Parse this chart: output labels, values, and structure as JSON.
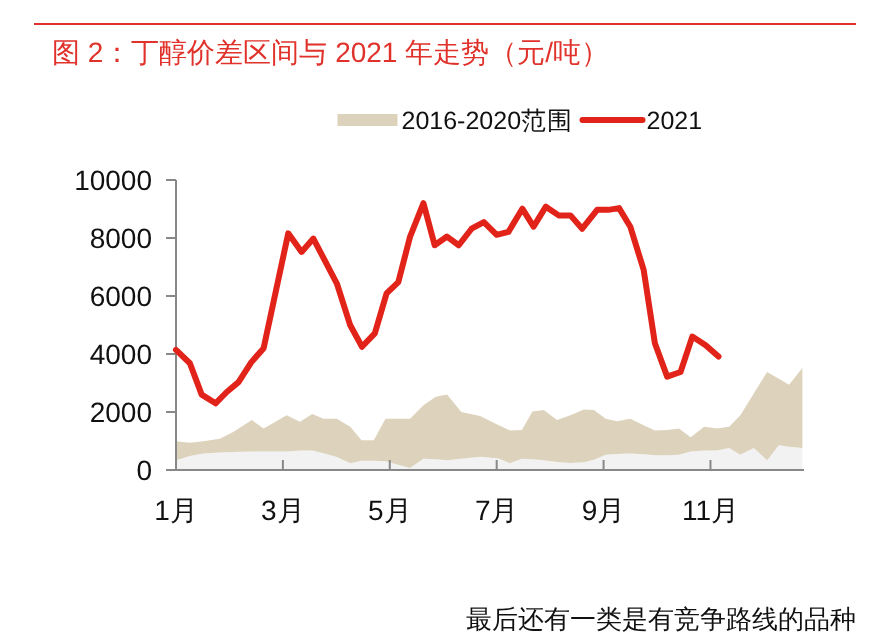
{
  "chart_data": {
    "type": "line",
    "title": "图 2：丁醇价差区间与 2021 年走势（元/吨）",
    "annotations": [
      "最后还有一类是有竞争路线的品种"
    ],
    "stacked": true,
    "legend": "top",
    "grid": false,
    "xlim": [
      1,
      12.75
    ],
    "xticks": [
      {
        "value": 1,
        "label": "1月"
      },
      {
        "value": 3,
        "label": "3月"
      },
      {
        "value": 5,
        "label": "5月"
      },
      {
        "value": 7,
        "label": "7月"
      },
      {
        "value": 9,
        "label": "9月"
      },
      {
        "value": 11,
        "label": "11月"
      }
    ],
    "ylim": [
      0,
      10000
    ],
    "yticks": [
      0,
      2000,
      4000,
      6000,
      8000,
      10000
    ],
    "series": [
      {
        "type": "area",
        "color": "#f2f2f2",
        "x": [
          1.0,
          1.26,
          1.51,
          1.82,
          2.07,
          2.42,
          2.64,
          3.07,
          3.32,
          3.55,
          3.76,
          4.01,
          4.26,
          4.47,
          4.7,
          4.92,
          5.38,
          5.63,
          5.86,
          6.07,
          6.34,
          6.69,
          7.04,
          7.25,
          7.47,
          7.67,
          7.88,
          8.13,
          8.38,
          8.63,
          8.82,
          9.04,
          9.25,
          9.5,
          9.75,
          9.96,
          10.19,
          10.41,
          10.63,
          10.88,
          11.12,
          11.35,
          11.56,
          11.81,
          12.06,
          12.28,
          12.47,
          12.72
        ],
        "values": [
          340,
          480,
          570,
          600,
          620,
          640,
          640,
          640,
          670,
          670,
          580,
          450,
          230,
          320,
          320,
          300,
          70,
          390,
          370,
          340,
          390,
          460,
          400,
          230,
          390,
          370,
          340,
          280,
          240,
          270,
          350,
          530,
          550,
          570,
          540,
          510,
          510,
          530,
          640,
          670,
          670,
          760,
          530,
          760,
          340,
          850,
          800,
          760
        ]
      },
      {
        "type": "area",
        "name": "2016-2020范围",
        "color": "#ddd3bd",
        "x": [
          1.0,
          1.26,
          1.51,
          1.82,
          2.07,
          2.42,
          2.64,
          3.07,
          3.32,
          3.55,
          3.76,
          4.01,
          4.26,
          4.47,
          4.7,
          4.92,
          5.38,
          5.63,
          5.86,
          6.07,
          6.34,
          6.69,
          7.04,
          7.25,
          7.47,
          7.67,
          7.88,
          8.13,
          8.38,
          8.63,
          8.82,
          9.04,
          9.25,
          9.5,
          9.75,
          9.96,
          10.19,
          10.41,
          10.63,
          10.88,
          11.12,
          11.35,
          11.56,
          11.81,
          12.06,
          12.28,
          12.47,
          12.72
        ],
        "values": [
          650,
          460,
          420,
          480,
          690,
          1080,
          790,
          1250,
          990,
          1260,
          1190,
          1320,
          1260,
          710,
          710,
          1470,
          1700,
          1840,
          2160,
          2260,
          1610,
          1400,
          1140,
          1130,
          990,
          1650,
          1730,
          1440,
          1650,
          1820,
          1720,
          1240,
          1130,
          1200,
          1000,
          850,
          870,
          900,
          490,
          820,
          760,
          730,
          1360,
          1880,
          3040,
          2300,
          2140,
          2760
        ]
      },
      {
        "name": "2021",
        "color": "#e2231a",
        "x": [
          1.0,
          1.26,
          1.48,
          1.74,
          1.95,
          2.17,
          2.41,
          2.64,
          3.1,
          3.35,
          3.57,
          4.01,
          4.26,
          4.48,
          4.72,
          4.94,
          5.16,
          5.38,
          5.63,
          5.84,
          6.07,
          6.29,
          6.53,
          6.76,
          7.0,
          7.22,
          7.48,
          7.69,
          7.92,
          8.16,
          8.38,
          8.6,
          8.88,
          9.09,
          9.29,
          9.5,
          9.75,
          9.96,
          10.19,
          10.44,
          10.66,
          10.91,
          11.15
        ],
        "values": [
          4140,
          3680,
          2600,
          2300,
          2690,
          3030,
          3720,
          4200,
          8160,
          7520,
          7980,
          6430,
          4990,
          4250,
          4710,
          6090,
          6480,
          8050,
          9200,
          7750,
          8050,
          7750,
          8320,
          8550,
          8110,
          8210,
          9010,
          8390,
          9080,
          8780,
          8780,
          8320,
          8970,
          8970,
          9030,
          8390,
          6900,
          4370,
          3220,
          3380,
          4600,
          4300,
          3910
        ]
      }
    ]
  }
}
